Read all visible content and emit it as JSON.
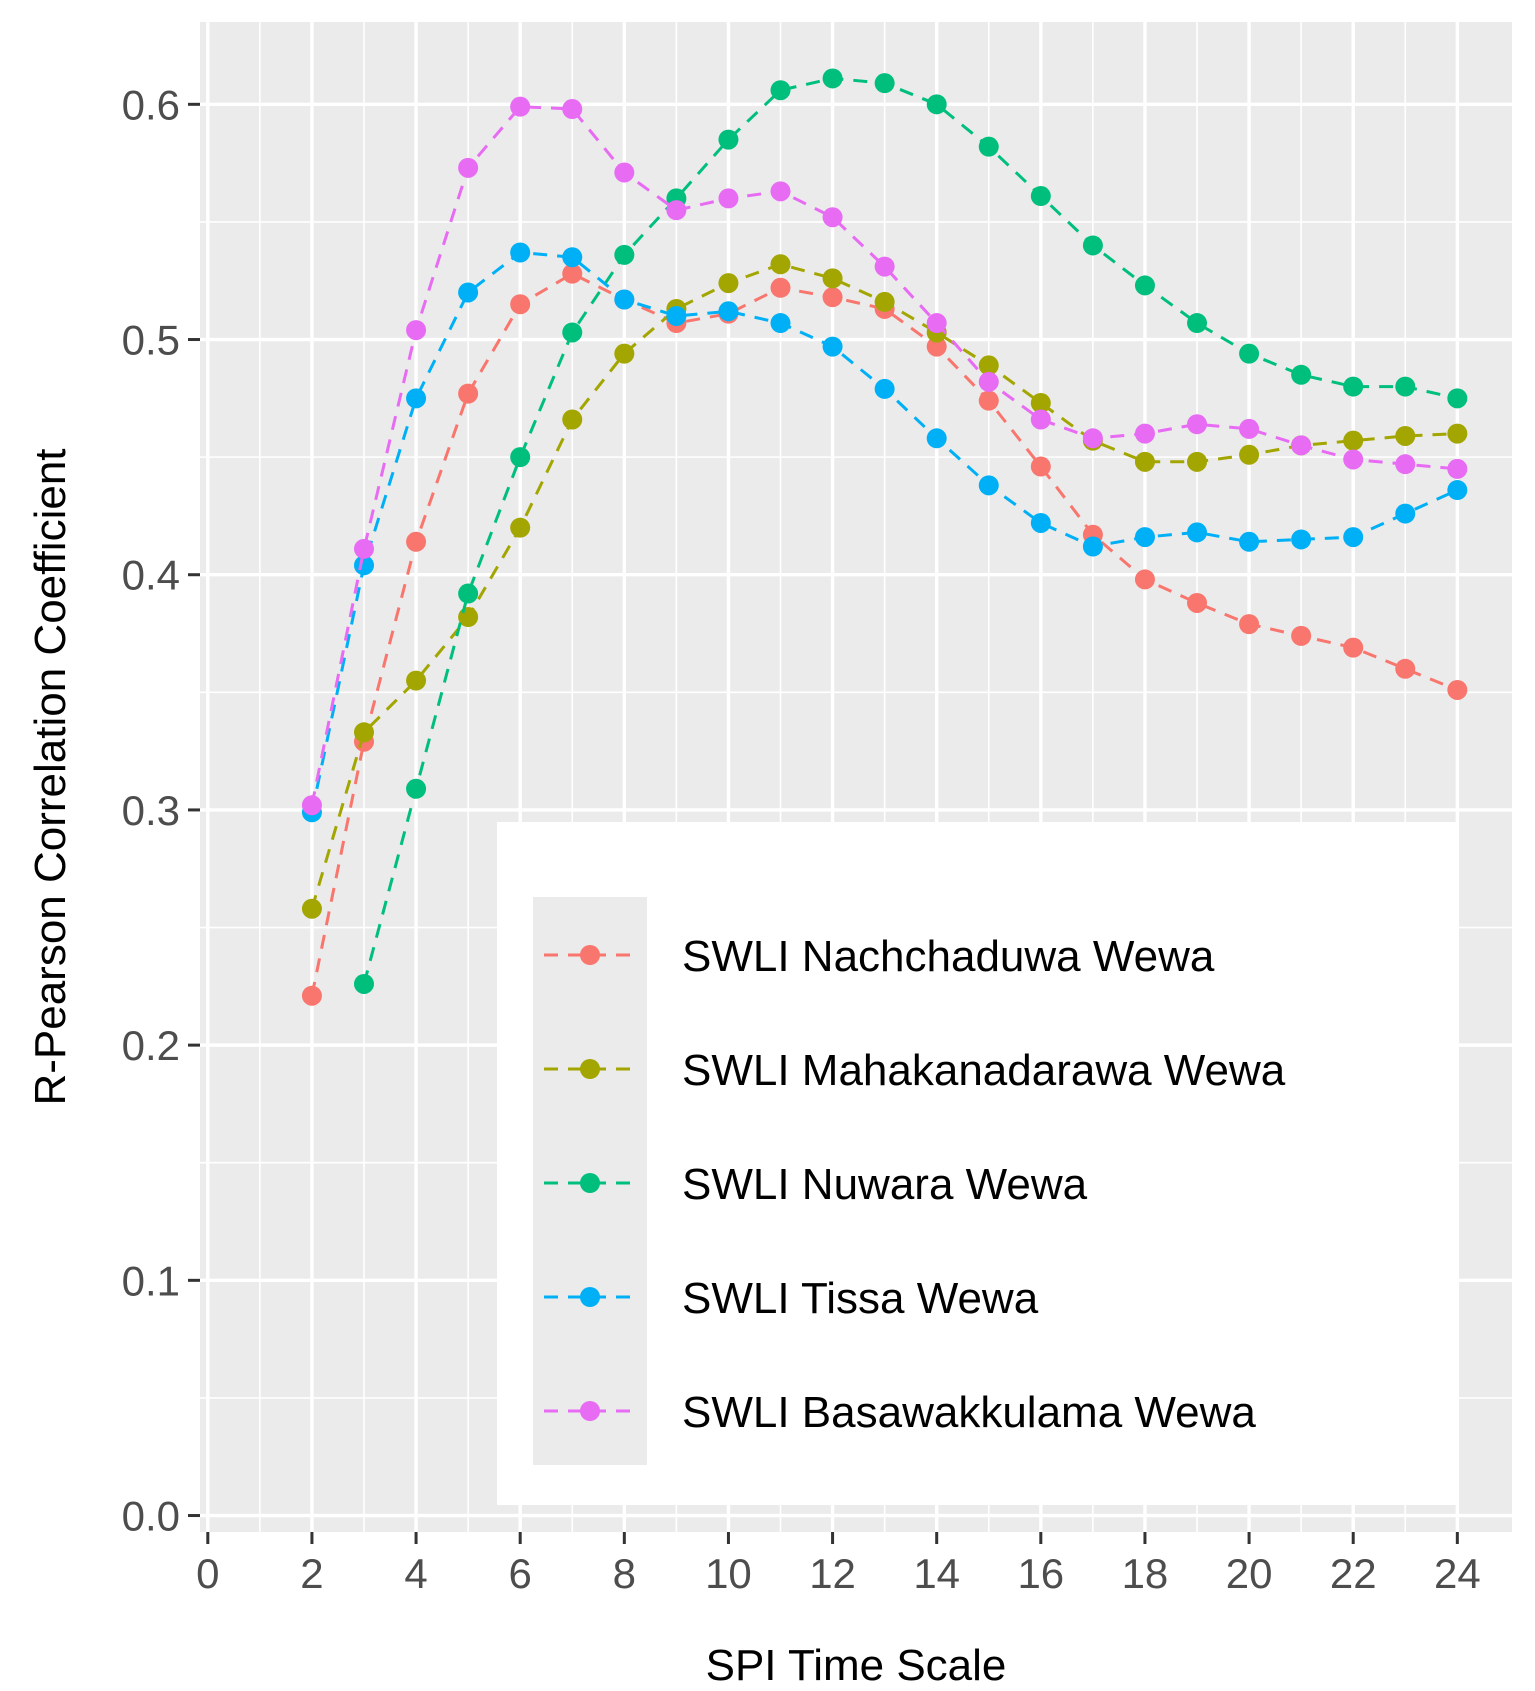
{
  "chart_data": {
    "type": "line",
    "title": "",
    "xlabel": "SPI Time Scale",
    "ylabel": "R-Pearson Correlation Coefficient",
    "xlim": [
      -0.15,
      25.05
    ],
    "ylim": [
      -0.007,
      0.635
    ],
    "xticks": [
      0,
      2,
      4,
      6,
      8,
      10,
      12,
      14,
      16,
      18,
      20,
      22,
      24
    ],
    "xtick_labels": [
      "0",
      "2",
      "4",
      "6",
      "8",
      "10",
      "12",
      "14",
      "16",
      "18",
      "20",
      "22",
      "24"
    ],
    "yticks": [
      0.0,
      0.1,
      0.2,
      0.3,
      0.4,
      0.5,
      0.6
    ],
    "ytick_labels": [
      "0.0",
      "0.1",
      "0.2",
      "0.3",
      "0.4",
      "0.5",
      "0.6"
    ],
    "grid": true,
    "background": "#ebebeb",
    "legend_position": "bottom-right inside",
    "x": [
      2,
      3,
      4,
      5,
      6,
      7,
      8,
      9,
      10,
      11,
      12,
      13,
      14,
      15,
      16,
      17,
      18,
      19,
      20,
      21,
      22,
      23,
      24
    ],
    "series": [
      {
        "name": "SWLI Nachchaduwa Wewa",
        "color": "#F8766D",
        "values": [
          0.221,
          0.329,
          0.414,
          0.477,
          0.515,
          0.528,
          0.517,
          0.507,
          0.511,
          0.522,
          0.518,
          0.513,
          0.497,
          0.474,
          0.446,
          0.417,
          0.398,
          0.388,
          0.379,
          0.374,
          0.369,
          0.36,
          0.351
        ]
      },
      {
        "name": "SWLI Mahakanadarawa Wewa",
        "color": "#A3A500",
        "values": [
          0.258,
          0.333,
          0.355,
          0.382,
          0.42,
          0.466,
          0.494,
          0.513,
          0.524,
          0.532,
          0.526,
          0.516,
          0.503,
          0.489,
          0.473,
          0.457,
          0.448,
          0.448,
          0.451,
          0.455,
          0.457,
          0.459,
          0.46
        ]
      },
      {
        "name": "SWLI Nuwara Wewa",
        "color": "#00BF7D",
        "values": [
          null,
          0.226,
          0.309,
          0.392,
          0.45,
          0.503,
          0.536,
          0.56,
          0.585,
          0.606,
          0.611,
          0.609,
          0.6,
          0.582,
          0.561,
          0.54,
          0.523,
          0.507,
          0.494,
          0.485,
          0.48,
          0.48,
          0.475
        ]
      },
      {
        "name": "SWLI Tissa Wewa",
        "color": "#00B0F6",
        "values": [
          0.299,
          0.404,
          0.475,
          0.52,
          0.537,
          0.535,
          0.517,
          0.51,
          0.512,
          0.507,
          0.497,
          0.479,
          0.458,
          0.438,
          0.422,
          0.412,
          0.416,
          0.418,
          0.414,
          0.415,
          0.416,
          0.426,
          0.436
        ]
      },
      {
        "name": "SWLI Basawakkulama Wewa",
        "color": "#E76BF3",
        "values": [
          0.302,
          0.411,
          0.504,
          0.573,
          0.599,
          0.598,
          0.571,
          0.555,
          0.56,
          0.563,
          0.552,
          0.531,
          0.507,
          0.482,
          0.466,
          0.458,
          0.46,
          0.464,
          0.462,
          0.455,
          0.449,
          0.447,
          0.445
        ]
      }
    ]
  }
}
